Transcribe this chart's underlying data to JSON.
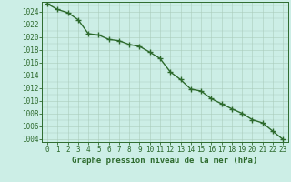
{
  "x": [
    0,
    1,
    2,
    3,
    4,
    5,
    6,
    7,
    8,
    9,
    10,
    11,
    12,
    13,
    14,
    15,
    16,
    17,
    18,
    19,
    20,
    21,
    22,
    23
  ],
  "y": [
    1025.2,
    1024.3,
    1023.8,
    1022.7,
    1020.5,
    1020.3,
    1019.6,
    1019.4,
    1018.8,
    1018.5,
    1017.6,
    1016.6,
    1014.5,
    1013.3,
    1011.8,
    1011.5,
    1010.3,
    1009.5,
    1008.7,
    1008.0,
    1007.0,
    1006.5,
    1005.2,
    1003.9
  ],
  "ylim_min": 1003.5,
  "ylim_max": 1025.5,
  "yticks": [
    1004,
    1006,
    1008,
    1010,
    1012,
    1014,
    1016,
    1018,
    1020,
    1022,
    1024
  ],
  "xticks": [
    0,
    1,
    2,
    3,
    4,
    5,
    6,
    7,
    8,
    9,
    10,
    11,
    12,
    13,
    14,
    15,
    16,
    17,
    18,
    19,
    20,
    21,
    22,
    23
  ],
  "line_color": "#2d6a2d",
  "marker": "+",
  "marker_size": 4,
  "bg_color": "#cceee6",
  "grid_color": "#aaccbb",
  "xlabel": "Graphe pression niveau de la mer (hPa)",
  "xlabel_fontsize": 6.5,
  "tick_fontsize": 5.5,
  "line_width": 1.0,
  "spine_color": "#2d6a2d"
}
